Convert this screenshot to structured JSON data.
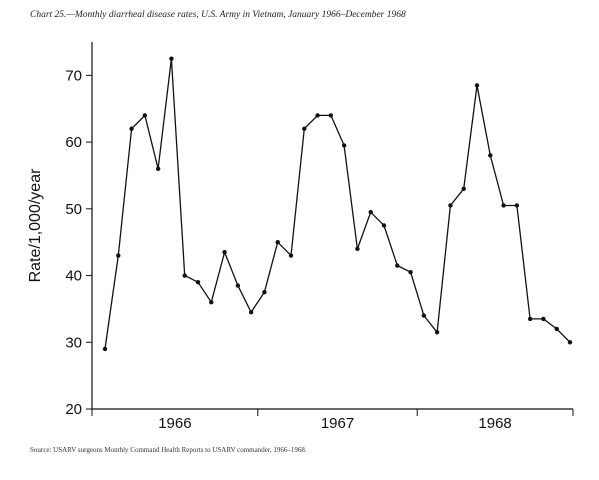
{
  "chart_data": {
    "type": "line",
    "title": "Chart 25.—Monthly diarrheal disease rates, U.S. Army in Vietnam, January 1966–December 1968",
    "ylabel": "Rate/1,000/year",
    "xlabel": "",
    "ylim": [
      20,
      75
    ],
    "yticks": [
      20,
      30,
      40,
      50,
      60,
      70
    ],
    "year_labels": [
      "1966",
      "1967",
      "1968"
    ],
    "source": "Source: USARV surgeons Monthly Command Health Reports to USARV commander, 1966–1968.",
    "grid": false,
    "x": [
      "Jan 1966",
      "Feb 1966",
      "Mar 1966",
      "Apr 1966",
      "May 1966",
      "Jun 1966",
      "Jul 1966",
      "Aug 1966",
      "Sep 1966",
      "Oct 1966",
      "Nov 1966",
      "Dec 1966",
      "Jan 1967",
      "Feb 1967",
      "Mar 1967",
      "Apr 1967",
      "May 1967",
      "Jun 1967",
      "Jul 1967",
      "Aug 1967",
      "Sep 1967",
      "Oct 1967",
      "Nov 1967",
      "Dec 1967",
      "Jan 1968",
      "Feb 1968",
      "Mar 1968",
      "Apr 1968",
      "May 1968",
      "Jun 1968",
      "Jul 1968",
      "Aug 1968",
      "Sep 1968",
      "Oct 1968",
      "Nov 1968",
      "Dec 1968"
    ],
    "series": [
      {
        "values": [
          29,
          43,
          62,
          64,
          56,
          72.5,
          40,
          39,
          36,
          43.5,
          38.5,
          34.5,
          37.5,
          45,
          43,
          62,
          64,
          64,
          59.5,
          44,
          49.5,
          47.5,
          41.5,
          40.5,
          34,
          31.5,
          50.5,
          53,
          68.5,
          58,
          50.5,
          50.5,
          33.5,
          33.5,
          32,
          30
        ]
      }
    ]
  }
}
